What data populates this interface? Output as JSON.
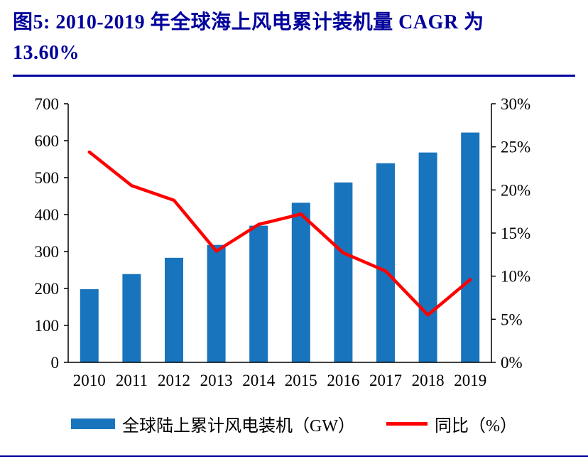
{
  "header": {
    "title": "图5:  2010-2019 年全球海上风电累计装机量  CAGR 为\n13.60%"
  },
  "colors": {
    "title": "#00009C",
    "rule": "#00009C",
    "axis": "#000000",
    "bar": "#1874BD",
    "line": "#FF0000"
  },
  "legend": {
    "bar_label": "全球陆上累计风电装机（GW）",
    "line_label": "同比（%）"
  },
  "chart_data": {
    "type": "bar",
    "subtype": "bar+line combo, dual axis",
    "title": "图5: 2010-2019 年全球海上风电累计装机量 CAGR 为 13.60%",
    "categories": [
      "2010",
      "2011",
      "2012",
      "2013",
      "2014",
      "2015",
      "2016",
      "2017",
      "2018",
      "2019"
    ],
    "series": [
      {
        "name": "全球陆上累计风电装机（GW）",
        "type": "bar",
        "axis": "left",
        "color": "#1874BD",
        "values": [
          198,
          239,
          283,
          318,
          370,
          432,
          487,
          539,
          568,
          622
        ]
      },
      {
        "name": "同比（%）",
        "type": "line",
        "axis": "right",
        "color": "#FF0000",
        "values": [
          24.4,
          20.5,
          18.8,
          12.9,
          16.0,
          17.2,
          12.7,
          10.6,
          5.5,
          9.6
        ]
      }
    ],
    "left_axis": {
      "min": 0,
      "max": 700,
      "step": 100,
      "labels": [
        "0",
        "100",
        "200",
        "300",
        "400",
        "500",
        "600",
        "700"
      ]
    },
    "right_axis": {
      "min": 0,
      "max": 30,
      "step": 5,
      "labels": [
        "0%",
        "5%",
        "10%",
        "15%",
        "20%",
        "25%",
        "30%"
      ]
    },
    "grid": false,
    "legend_position": "bottom"
  }
}
